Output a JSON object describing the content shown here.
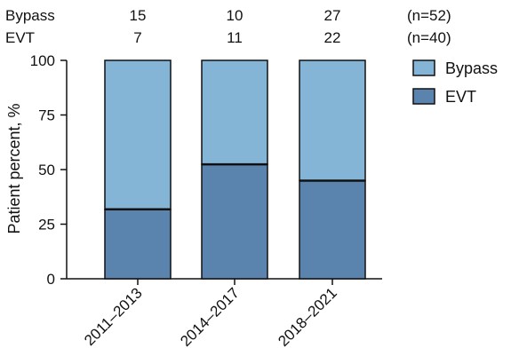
{
  "chart_data": {
    "type": "bar",
    "stacked": true,
    "categories": [
      "2011–2013",
      "2014–2017",
      "2018–2021"
    ],
    "series": [
      {
        "name": "EVT",
        "values": [
          31.8,
          52.4,
          44.9
        ],
        "counts": [
          "7",
          "11",
          "22"
        ],
        "total": "(n=40)",
        "color": "#5a84ad"
      },
      {
        "name": "Bypass",
        "values": [
          68.2,
          47.6,
          55.1
        ],
        "counts": [
          "15",
          "10",
          "27"
        ],
        "total": "(n=52)",
        "color": "#85b5d6"
      }
    ],
    "ylabel": "Patient percent, %",
    "xlabel": "",
    "ylim": [
      0,
      100
    ],
    "yticks": [
      "0",
      "25",
      "50",
      "75",
      "100"
    ],
    "legend_position": "top-right",
    "legend_order": [
      "Bypass",
      "EVT"
    ],
    "count_table": [
      {
        "label": "Bypass",
        "counts": [
          "15",
          "10",
          "27"
        ],
        "total": "(n=52)"
      },
      {
        "label": "EVT",
        "counts": [
          "7",
          "11",
          "22"
        ],
        "total": "(n=40)"
      }
    ]
  }
}
